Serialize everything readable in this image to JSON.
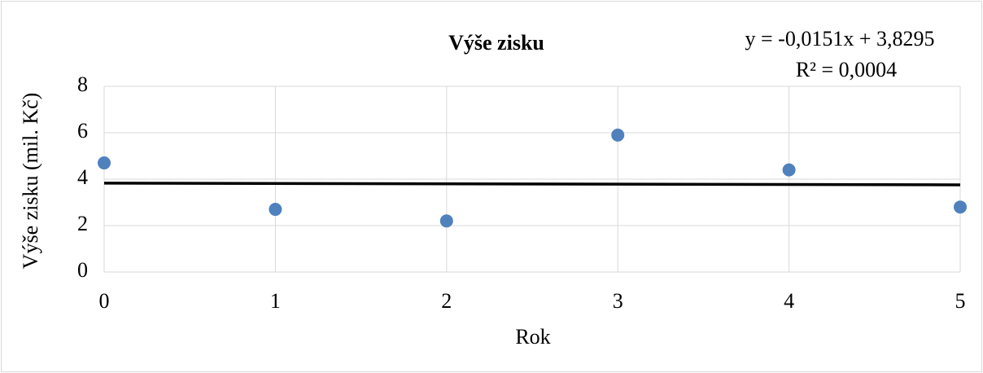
{
  "chart_data": {
    "type": "scatter",
    "title": "Výše zisku",
    "x_label": "Rok",
    "y_label": "Výše zisku (mil. Kč)",
    "x": [
      0,
      1,
      2,
      3,
      4,
      5
    ],
    "values": [
      4.7,
      2.7,
      2.2,
      5.9,
      4.4,
      2.8
    ],
    "color": "#4f81bd",
    "xlim": [
      0,
      5
    ],
    "xticks": [
      0,
      1,
      2,
      3,
      4,
      5
    ],
    "ylim": [
      0,
      8
    ],
    "yticks": [
      0,
      2,
      4,
      6,
      8
    ],
    "grid": true,
    "trendline": {
      "slope": -0.0151,
      "intercept": 3.8295,
      "color": "#000000",
      "equation": "y = -0,0151x + 3,8295",
      "r_squared": "R² = 0,0004"
    }
  }
}
